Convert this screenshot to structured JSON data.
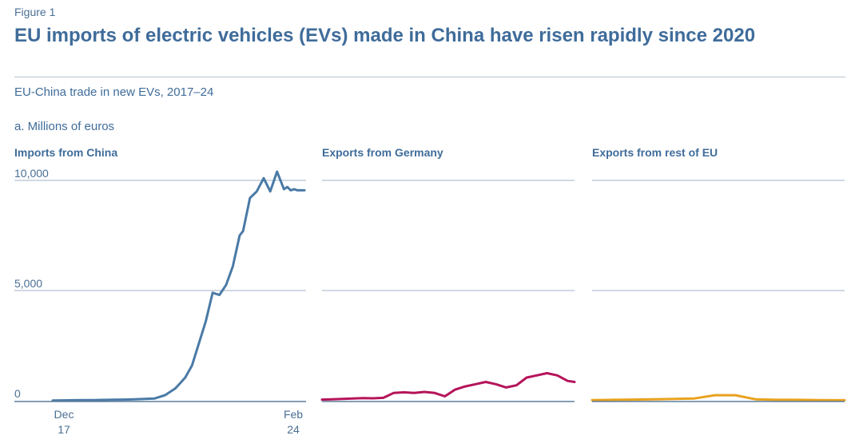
{
  "figure_label": "Figure 1",
  "title": "EU imports of electric vehicles (EVs) made in China have risen rapidly since 2020",
  "subtitle": "EU-China trade in new EVs, 2017–24",
  "panel_label": "a. Millions of euros",
  "colors": {
    "china": "#4a7aa6",
    "germany": "#b5145a",
    "rest_eu": "#e8a21e",
    "grid": "#9fb3c8",
    "text": "#4a6f93"
  },
  "chart_data": [
    {
      "type": "line",
      "title": "Imports from China",
      "ylim": [
        0,
        10000
      ],
      "yticks": [
        0,
        5000,
        10000
      ],
      "ytick_labels": [
        "0",
        "5,000",
        "10,000"
      ],
      "xtick_labels": [
        {
          "line1": "Dec",
          "line2": "17"
        },
        {
          "line1": "Feb",
          "line2": "24"
        }
      ],
      "x": [
        "2017-12",
        "2018-03",
        "2018-06",
        "2018-09",
        "2018-12",
        "2019-03",
        "2019-06",
        "2019-09",
        "2019-12",
        "2020-03",
        "2020-06",
        "2020-09",
        "2020-12",
        "2021-01",
        "2021-03",
        "2021-05",
        "2021-07",
        "2021-09",
        "2021-11",
        "2022-01",
        "2022-03",
        "2022-05",
        "2022-07",
        "2022-08",
        "2022-10",
        "2022-12",
        "2023-02",
        "2023-04",
        "2023-06",
        "2023-08",
        "2023-09",
        "2023-10",
        "2023-11",
        "2023-12",
        "2024-01",
        "2024-02"
      ],
      "values": [
        10,
        15,
        20,
        25,
        30,
        35,
        45,
        50,
        60,
        80,
        100,
        250,
        550,
        720,
        1050,
        1600,
        2600,
        3600,
        4900,
        4800,
        5250,
        6100,
        7500,
        7700,
        9200,
        9500,
        10100,
        9500,
        10400,
        9600,
        9700,
        9550,
        9600,
        9550,
        9550,
        9550
      ],
      "series_name": "Imports from China"
    },
    {
      "type": "line",
      "title": "Exports from Germany",
      "ylim": [
        0,
        10000
      ],
      "yticks": [
        0,
        5000,
        10000
      ],
      "x": [
        "2017-12",
        "2018-03",
        "2018-06",
        "2018-09",
        "2018-12",
        "2019-03",
        "2019-06",
        "2019-09",
        "2019-12",
        "2020-03",
        "2020-06",
        "2020-09",
        "2020-12",
        "2021-03",
        "2021-06",
        "2021-09",
        "2021-12",
        "2022-03",
        "2022-06",
        "2022-09",
        "2022-12",
        "2023-03",
        "2023-06",
        "2023-09",
        "2023-12",
        "2024-02"
      ],
      "values": [
        50,
        60,
        80,
        100,
        120,
        110,
        130,
        350,
        380,
        350,
        400,
        350,
        200,
        500,
        650,
        750,
        850,
        750,
        600,
        700,
        1050,
        1150,
        1250,
        1150,
        900,
        850
      ],
      "series_name": "Exports from Germany"
    },
    {
      "type": "line",
      "title": "Exports from rest of EU",
      "ylim": [
        0,
        10000
      ],
      "yticks": [
        0,
        5000,
        10000
      ],
      "x": [
        "2017-12",
        "2018-06",
        "2018-12",
        "2019-06",
        "2019-12",
        "2020-06",
        "2020-12",
        "2021-06",
        "2021-12",
        "2022-06",
        "2022-12",
        "2023-06",
        "2023-12",
        "2024-02"
      ],
      "values": [
        30,
        40,
        50,
        60,
        80,
        100,
        250,
        250,
        60,
        40,
        40,
        30,
        20,
        20
      ],
      "series_name": "Exports from rest of EU"
    }
  ]
}
